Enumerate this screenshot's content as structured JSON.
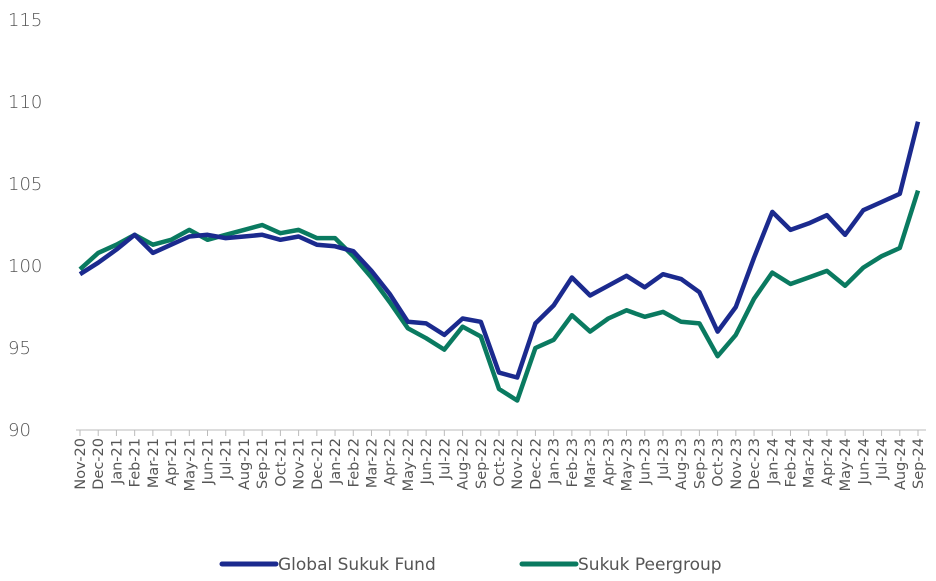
{
  "chart_data": {
    "type": "line",
    "categories": [
      "Nov-20",
      "Dec-20",
      "Jan-21",
      "Feb-21",
      "Mar-21",
      "Apr-21",
      "May-21",
      "Jun-21",
      "Jul-21",
      "Aug-21",
      "Sep-21",
      "Oct-21",
      "Nov-21",
      "Dec-21",
      "Jan-22",
      "Feb-22",
      "Mar-22",
      "Apr-22",
      "May-22",
      "Jun-22",
      "Jul-22",
      "Aug-22",
      "Sep-22",
      "Oct-22",
      "Nov-22",
      "Dec-22",
      "Jan-23",
      "Feb-23",
      "Mar-23",
      "Apr-23",
      "May-23",
      "Jun-23",
      "Jul-23",
      "Aug-23",
      "Sep-23",
      "Oct-23",
      "Nov-23",
      "Dec-23",
      "Jan-24",
      "Feb-24",
      "Mar-24",
      "Apr-24",
      "May-24",
      "Jun-24",
      "Jul-24",
      "Aug-24",
      "Sep-24"
    ],
    "series": [
      {
        "name": "Global Sukuk Fund",
        "color": "#1b2a8e",
        "values": [
          99.5,
          100.2,
          101.0,
          101.9,
          100.8,
          101.3,
          101.8,
          101.9,
          101.7,
          101.8,
          101.9,
          101.6,
          101.8,
          101.3,
          101.2,
          100.9,
          99.7,
          98.3,
          96.6,
          96.5,
          95.8,
          96.8,
          96.6,
          93.5,
          93.2,
          96.5,
          97.6,
          99.3,
          98.2,
          98.8,
          99.4,
          98.7,
          99.5,
          99.2,
          98.4,
          96.0,
          97.5,
          100.5,
          103.3,
          102.2,
          102.6,
          103.1,
          101.9,
          103.4,
          103.9,
          104.4,
          108.8
        ]
      },
      {
        "name": "Sukuk Peergroup",
        "color": "#0a7a60",
        "values": [
          99.8,
          100.8,
          101.3,
          101.9,
          101.3,
          101.6,
          102.2,
          101.6,
          101.9,
          102.2,
          102.5,
          102.0,
          102.2,
          101.7,
          101.7,
          100.6,
          99.3,
          97.8,
          96.2,
          95.6,
          94.9,
          96.3,
          95.7,
          92.5,
          91.8,
          95.0,
          95.5,
          97.0,
          96.0,
          96.8,
          97.3,
          96.9,
          97.2,
          96.6,
          96.5,
          94.5,
          95.8,
          98.0,
          99.6,
          98.9,
          99.3,
          99.7,
          98.8,
          99.9,
          100.6,
          101.1,
          104.6
        ]
      }
    ],
    "ylim": [
      90,
      115
    ],
    "yticks": [
      90,
      95,
      100,
      105,
      110,
      115
    ]
  }
}
